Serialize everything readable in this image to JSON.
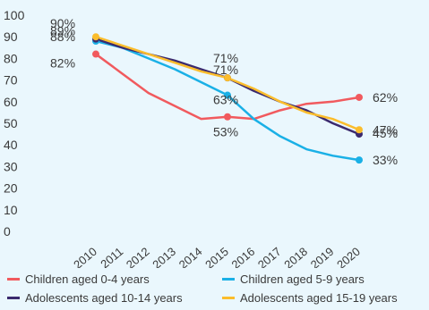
{
  "chart_data": {
    "type": "line",
    "ylim": [
      0,
      100
    ],
    "yticks": [
      "0",
      "10",
      "20",
      "30",
      "40",
      "50",
      "60",
      "70",
      "80",
      "90",
      "100"
    ],
    "x": [
      "2010",
      "2011",
      "2012",
      "2013",
      "2014",
      "2015",
      "2016",
      "2017",
      "2018",
      "2019",
      "2020"
    ],
    "series": [
      {
        "name": "Children aged 0-4 years",
        "color": "#f15a5e",
        "values": [
          82,
          73,
          64,
          58,
          52,
          53,
          52,
          56,
          59,
          60,
          62
        ],
        "marker_indices": [
          0,
          5,
          10
        ],
        "labels": [
          "82%",
          "53%",
          "62%"
        ]
      },
      {
        "name": "Children aged 5-9 years",
        "color": "#1ab0e6",
        "values": [
          88,
          85,
          80,
          75,
          69,
          63,
          52,
          44,
          38,
          35,
          33
        ],
        "marker_indices": [
          0,
          5,
          10
        ],
        "labels": [
          "88%",
          "63%",
          "33%"
        ]
      },
      {
        "name": "Adolescents aged 10-14 years",
        "color": "#3b2a6e",
        "values": [
          89,
          85,
          82,
          79,
          75,
          71,
          65,
          60,
          56,
          50,
          45
        ],
        "marker_indices": [
          0,
          5,
          10
        ],
        "labels": [
          "89%",
          "71%",
          "45%"
        ]
      },
      {
        "name": "Adolescents aged 15-19 years",
        "color": "#fbbd2c",
        "values": [
          90,
          86,
          82,
          78,
          74,
          71,
          66,
          60,
          55,
          52,
          47
        ],
        "marker_indices": [
          0,
          5,
          10
        ],
        "labels": [
          "90%",
          "71%",
          "47%"
        ]
      }
    ],
    "legend_placement": "bottom",
    "grid": false
  }
}
